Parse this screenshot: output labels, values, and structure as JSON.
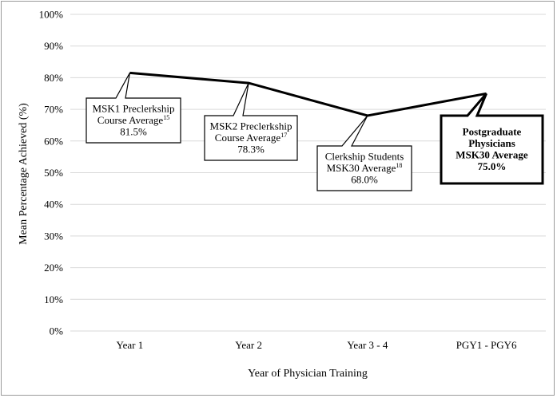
{
  "chart_data": {
    "type": "line",
    "title": "",
    "xlabel": "Year of Physician Training",
    "ylabel": "Mean Percentage Achieved (%)",
    "ylim": [
      0,
      100
    ],
    "y_ticks": [
      "0%",
      "10%",
      "20%",
      "30%",
      "40%",
      "50%",
      "60%",
      "70%",
      "80%",
      "90%",
      "100%"
    ],
    "grid": true,
    "categories": [
      "Year  1",
      "Year  2",
      "Year 3 - 4",
      "PGY1 - PGY6"
    ],
    "values": [
      81.5,
      78.3,
      68.0,
      75.0
    ],
    "line_color": "#000000",
    "annotations": [
      {
        "lines": [
          "MSK1 Preclerkship",
          "Course Average"
        ],
        "sup": "15",
        "value": "81.5%",
        "bold": false
      },
      {
        "lines": [
          "MSK2 Preclerkship",
          "Course Average"
        ],
        "sup": "17",
        "value": "78.3%",
        "bold": false
      },
      {
        "lines": [
          "Clerkship Students",
          "MSK30 Average"
        ],
        "sup": "18",
        "value": "68.0%",
        "bold": false
      },
      {
        "lines": [
          "Postgraduate",
          "Physicians",
          "MSK30 Average"
        ],
        "sup": "",
        "value": "75.0%",
        "bold": true
      }
    ]
  }
}
